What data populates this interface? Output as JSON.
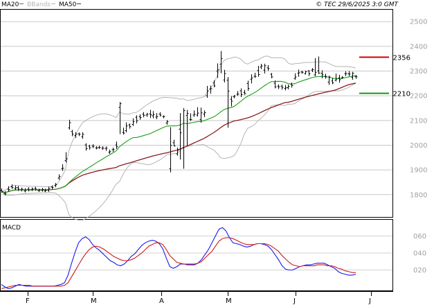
{
  "header": {
    "legend": [
      {
        "label": "MA20",
        "color": "#1a9e1a"
      },
      {
        "label": "BBands",
        "color": "#b4b4b4"
      },
      {
        "label": "MA50",
        "color": "#8b1a1a"
      }
    ],
    "copyright": "© TEC 29/6/2025 3:0 GMT"
  },
  "markers": [
    {
      "label": "2356",
      "value": 2356,
      "color": "#cc0000"
    },
    {
      "label": "2210",
      "value": 2210,
      "color": "#119911"
    }
  ],
  "macd_title": "MACD",
  "chart_data": [
    {
      "type": "ohlc",
      "name": "price",
      "ylim": [
        1700,
        2540
      ],
      "yticks": [
        1800,
        1900,
        2000,
        2100,
        2200,
        2300,
        2400,
        2500
      ],
      "grid": true,
      "months": [
        "F",
        "M",
        "A",
        "M",
        "J",
        "J"
      ],
      "bars": [
        [
          1818,
          1813,
          1825,
          1808
        ],
        [
          1805,
          1803,
          1814,
          1797
        ],
        [
          1822,
          1820,
          1834,
          1812
        ],
        [
          1832,
          1829,
          1842,
          1823
        ],
        [
          1825,
          1828,
          1837,
          1819
        ],
        [
          1828,
          1822,
          1835,
          1815
        ],
        [
          1819,
          1822,
          1829,
          1813
        ],
        [
          1815,
          1818,
          1826,
          1809
        ],
        [
          1822,
          1819,
          1830,
          1813
        ],
        [
          1820,
          1823,
          1829,
          1815
        ],
        [
          1826,
          1822,
          1831,
          1816
        ],
        [
          1816,
          1818,
          1824,
          1811
        ],
        [
          1818,
          1821,
          1827,
          1812
        ],
        [
          1815,
          1817,
          1824,
          1810
        ],
        [
          1818,
          1825,
          1832,
          1811
        ],
        [
          1831,
          1829,
          1837,
          1821
        ],
        [
          1838,
          1840,
          1847,
          1830
        ],
        [
          1867,
          1873,
          1882,
          1860
        ],
        [
          1905,
          1907,
          1923,
          1896
        ],
        [
          1938,
          1945,
          1972,
          1930
        ],
        [
          2070,
          2091,
          2103,
          2063
        ],
        [
          2055,
          2045,
          2062,
          2036
        ],
        [
          2039,
          2045,
          2053,
          2029
        ],
        [
          2046,
          2045,
          2051,
          2037
        ],
        [
          2034,
          2044,
          2053,
          2026
        ],
        [
          2001,
          1986,
          2008,
          1978
        ],
        [
          1996,
          1990,
          2002,
          1982
        ],
        [
          1996,
          1996,
          2004,
          1988
        ],
        [
          1989,
          1989,
          1996,
          1983
        ],
        [
          1991,
          1991,
          1998,
          1985
        ],
        [
          1988,
          1988,
          1996,
          1981
        ],
        [
          1987,
          1988,
          1995,
          1977
        ],
        [
          1972,
          1974,
          1982,
          1965
        ],
        [
          1982,
          1983,
          1990,
          1973
        ],
        [
          2001,
          1994,
          2015,
          1985
        ],
        [
          2153,
          2168,
          2175,
          2045
        ],
        [
          2052,
          2049,
          2071,
          2043
        ],
        [
          2059,
          2078,
          2092,
          2052
        ],
        [
          2082,
          2075,
          2088,
          2067
        ],
        [
          2084,
          2095,
          2109,
          2078
        ],
        [
          2113,
          2099,
          2121,
          2088
        ],
        [
          2116,
          2112,
          2125,
          2103
        ],
        [
          2126,
          2121,
          2134,
          2113
        ],
        [
          2122,
          2125,
          2131,
          2115
        ],
        [
          2127,
          2123,
          2143,
          2110
        ],
        [
          2119,
          2124,
          2138,
          2109
        ],
        [
          2114,
          2116,
          2130,
          2106
        ],
        [
          2126,
          2122,
          2133,
          2116
        ],
        [
          2116,
          2116,
          2121,
          2109
        ],
        [
          2090,
          2095,
          2102,
          2083
        ],
        [
          1905,
          2000,
          2073,
          1890
        ],
        [
          2010,
          1997,
          2022,
          1995
        ],
        [
          1965,
          1980,
          1990,
          1958
        ],
        [
          2065,
          2050,
          2130,
          1942
        ],
        [
          1990,
          2140,
          2150,
          1905
        ],
        [
          2120,
          2129,
          2143,
          1999
        ],
        [
          2104,
          2104,
          2129,
          2098
        ],
        [
          2122,
          2125,
          2141,
          2115
        ],
        [
          2122,
          2130,
          2154,
          2116
        ],
        [
          2104,
          2131,
          2152,
          2091
        ],
        [
          2126,
          2132,
          2141,
          2114
        ],
        [
          2200,
          2219,
          2240,
          2192
        ],
        [
          2227,
          2229,
          2241,
          2209
        ],
        [
          2253,
          2240,
          2263,
          2234
        ],
        [
          2300,
          2305,
          2331,
          2272
        ],
        [
          2328,
          2350,
          2381,
          2291
        ],
        [
          2264,
          2290,
          2305,
          2254
        ],
        [
          2263,
          2219,
          2276,
          2071
        ],
        [
          2186,
          2178,
          2198,
          2157
        ],
        [
          2196,
          2199,
          2203,
          2190
        ],
        [
          2206,
          2207,
          2219,
          2200
        ],
        [
          2220,
          2205,
          2230,
          2195
        ],
        [
          2214,
          2209,
          2224,
          2204
        ],
        [
          2250,
          2230,
          2261,
          2220
        ],
        [
          2267,
          2272,
          2287,
          2250
        ],
        [
          2279,
          2278,
          2293,
          2272
        ],
        [
          2302,
          2286,
          2321,
          2277
        ],
        [
          2316,
          2321,
          2329,
          2308
        ],
        [
          2304,
          2322,
          2330,
          2290
        ],
        [
          2313,
          2310,
          2324,
          2301
        ],
        [
          2287,
          2276,
          2292,
          2271
        ],
        [
          2251,
          2236,
          2262,
          2230
        ],
        [
          2239,
          2236,
          2246,
          2227
        ],
        [
          2239,
          2234,
          2245,
          2225
        ],
        [
          2230,
          2232,
          2244,
          2222
        ],
        [
          2233,
          2238,
          2245,
          2226
        ],
        [
          2248,
          2241,
          2253,
          2233
        ],
        [
          2270,
          2276,
          2291,
          2265
        ],
        [
          2291,
          2293,
          2306,
          2277
        ],
        [
          2296,
          2295,
          2301,
          2289
        ],
        [
          2289,
          2297,
          2302,
          2286
        ],
        [
          2301,
          2289,
          2304,
          2280
        ],
        [
          2304,
          2306,
          2312,
          2296
        ],
        [
          2285,
          2294,
          2352,
          2279
        ],
        [
          2301,
          2292,
          2359,
          2288
        ],
        [
          2291,
          2285,
          2303,
          2271
        ],
        [
          2279,
          2277,
          2289,
          2269
        ],
        [
          2255,
          2276,
          2281,
          2244
        ],
        [
          2260,
          2252,
          2271,
          2247
        ],
        [
          2263,
          2268,
          2290,
          2258
        ],
        [
          2272,
          2265,
          2285,
          2253
        ],
        [
          2272,
          2274,
          2279,
          2269
        ],
        [
          2289,
          2290,
          2299,
          2280
        ],
        [
          2289,
          2288,
          2300,
          2279
        ],
        [
          2275,
          2291,
          2297,
          2265
        ],
        [
          2277,
          2277,
          2284,
          2269
        ]
      ]
    },
    {
      "type": "line",
      "name": "MACD",
      "ylim": [
        -0.09,
        0.72
      ],
      "yticks": [
        0.2,
        0.4,
        0.6
      ],
      "yticklabels": [
        "020",
        "040",
        "060"
      ],
      "series": [
        {
          "color": "#1a1aee",
          "values": [
            0.03,
            0.0,
            -0.02,
            -0.01,
            0.01,
            0.03,
            0.02,
            0.01,
            0.01,
            0.01,
            0.01,
            0.01,
            0.01,
            0.01,
            0.01,
            0.01,
            0.02,
            0.03,
            0.05,
            0.14,
            0.28,
            0.41,
            0.52,
            0.57,
            0.59,
            0.56,
            0.5,
            0.46,
            0.43,
            0.39,
            0.35,
            0.31,
            0.29,
            0.26,
            0.25,
            0.27,
            0.31,
            0.36,
            0.39,
            0.44,
            0.49,
            0.52,
            0.54,
            0.55,
            0.54,
            0.51,
            0.45,
            0.34,
            0.24,
            0.22,
            0.24,
            0.27,
            0.27,
            0.26,
            0.26,
            0.26,
            0.28,
            0.32,
            0.38,
            0.44,
            0.52,
            0.6,
            0.68,
            0.7,
            0.66,
            0.58,
            0.52,
            0.51,
            0.5,
            0.48,
            0.47,
            0.48,
            0.5,
            0.51,
            0.51,
            0.5,
            0.48,
            0.44,
            0.38,
            0.32,
            0.25,
            0.21,
            0.2,
            0.2,
            0.22,
            0.24,
            0.25,
            0.26,
            0.26,
            0.27,
            0.28,
            0.28,
            0.28,
            0.26,
            0.24,
            0.22,
            0.18,
            0.16,
            0.15,
            0.14,
            0.14,
            0.15
          ]
        },
        {
          "color": "#cc1a1a",
          "values": [
            -0.02,
            -0.01,
            0.0,
            0.01,
            0.02,
            0.02,
            0.02,
            0.02,
            0.02,
            0.01,
            0.01,
            0.01,
            0.01,
            0.01,
            0.01,
            0.01,
            0.01,
            0.01,
            0.02,
            0.05,
            0.12,
            0.19,
            0.26,
            0.33,
            0.39,
            0.44,
            0.47,
            0.48,
            0.47,
            0.45,
            0.42,
            0.39,
            0.36,
            0.34,
            0.32,
            0.31,
            0.31,
            0.32,
            0.34,
            0.37,
            0.4,
            0.44,
            0.48,
            0.5,
            0.52,
            0.52,
            0.5,
            0.44,
            0.37,
            0.33,
            0.29,
            0.28,
            0.27,
            0.27,
            0.27,
            0.27,
            0.28,
            0.3,
            0.34,
            0.38,
            0.42,
            0.48,
            0.54,
            0.57,
            0.58,
            0.58,
            0.57,
            0.55,
            0.53,
            0.51,
            0.5,
            0.5,
            0.5,
            0.51,
            0.51,
            0.51,
            0.5,
            0.48,
            0.45,
            0.42,
            0.37,
            0.33,
            0.29,
            0.26,
            0.25,
            0.24,
            0.25,
            0.25,
            0.25,
            0.25,
            0.26,
            0.26,
            0.26,
            0.25,
            0.25,
            0.24,
            0.22,
            0.21,
            0.19,
            0.18,
            0.17,
            0.17
          ]
        }
      ]
    }
  ]
}
